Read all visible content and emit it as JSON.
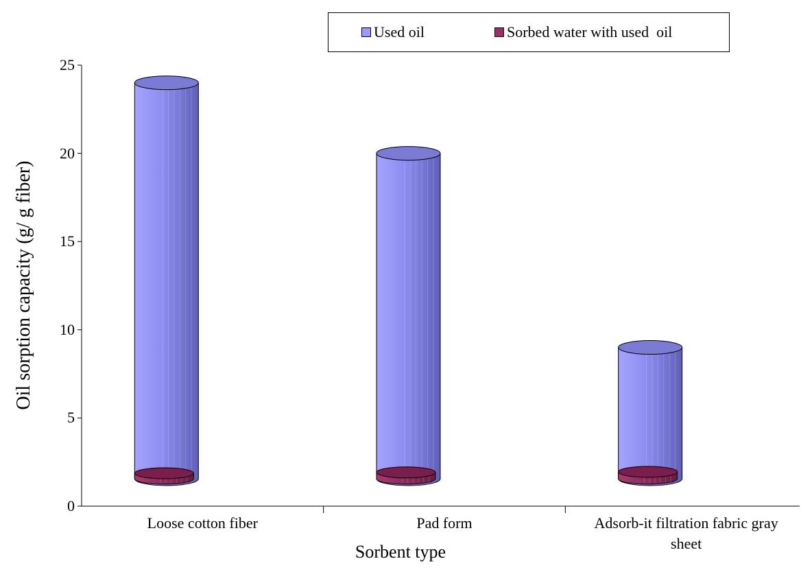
{
  "chart_data": {
    "type": "bar",
    "style": "3d-cylinder",
    "categories": [
      "Loose cotton fiber",
      "Pad form",
      "Adsorb-it filtration fabric gray sheet"
    ],
    "series": [
      {
        "name": "Used oil",
        "values": [
          24,
          20,
          9
        ],
        "color": "#9999ff"
      },
      {
        "name": "Sorbed water with used  oil",
        "values": [
          1.5,
          1.8,
          2.0
        ],
        "color": "#993366"
      }
    ],
    "xlabel": "Sorbent type",
    "ylabel": "Oil sorption capacity (g/ g fiber)",
    "ylim": [
      0,
      25
    ],
    "yticks": [
      0,
      5,
      10,
      15,
      20,
      25
    ],
    "legend_position": "top-right",
    "grid": false
  }
}
